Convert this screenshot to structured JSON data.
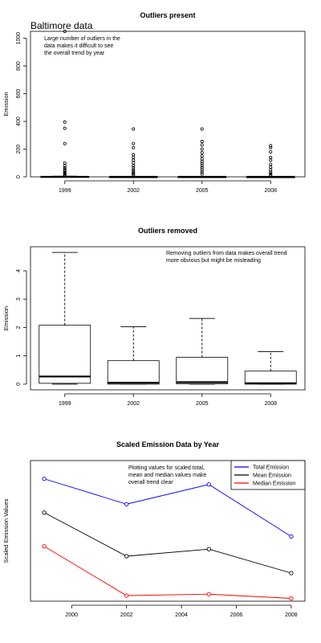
{
  "page": {
    "header": "Baltimore data"
  },
  "chart_data": [
    {
      "type": "boxplot",
      "title": "Outliers present",
      "xlabel": "",
      "ylabel": "Emission",
      "categories": [
        "1999",
        "2002",
        "2005",
        "2008"
      ],
      "ylim": [
        0,
        1050
      ],
      "yticks": [
        0,
        200,
        400,
        600,
        800,
        1000
      ],
      "boxes": [
        {
          "q1": 0,
          "median": 0.3,
          "q3": 2.1,
          "whisker_low": 0,
          "whisker_high": 4.7
        },
        {
          "q1": 0,
          "median": 0.05,
          "q3": 0.8,
          "whisker_low": 0,
          "whisker_high": 2.0
        },
        {
          "q1": 0,
          "median": 0.07,
          "q3": 0.95,
          "whisker_low": 0,
          "whisker_high": 2.3
        },
        {
          "q1": 0,
          "median": 0.03,
          "q3": 0.45,
          "whisker_low": 0,
          "whisker_high": 1.15
        }
      ],
      "outliers": [
        [
          1050,
          395,
          350,
          240,
          100,
          80,
          65,
          55,
          45,
          38,
          30,
          22,
          15,
          10
        ],
        [
          345,
          240,
          210,
          160,
          140,
          120,
          100,
          80,
          65,
          50,
          40,
          30,
          20,
          12
        ],
        [
          345,
          255,
          230,
          200,
          175,
          150,
          130,
          110,
          95,
          80,
          65,
          50,
          35,
          20
        ],
        [
          225,
          210,
          180,
          140,
          120,
          90,
          70,
          50,
          35,
          22,
          12
        ]
      ],
      "annotation": "Large number of outliers in the\ndata makes it difficult to see\nthe overall trend by year"
    },
    {
      "type": "boxplot",
      "title": "Outliers removed",
      "xlabel": "",
      "ylabel": "Emission",
      "categories": [
        "1999",
        "2002",
        "2005",
        "2008"
      ],
      "ylim": [
        -0.2,
        4.85
      ],
      "yticks": [
        0,
        1,
        2,
        3,
        4
      ],
      "boxes": [
        {
          "q1": 0.03,
          "median": 0.27,
          "q3": 2.08,
          "whisker_low": 0,
          "whisker_high": 4.65
        },
        {
          "q1": 0,
          "median": 0.05,
          "q3": 0.83,
          "whisker_low": 0,
          "whisker_high": 2.03
        },
        {
          "q1": 0.01,
          "median": 0.07,
          "q3": 0.95,
          "whisker_low": 0,
          "whisker_high": 2.32
        },
        {
          "q1": 0,
          "median": 0.03,
          "q3": 0.46,
          "whisker_low": 0,
          "whisker_high": 1.15
        }
      ],
      "annotation": "Removing outliers from data makes overall trend\nmore obvious but might be misleading"
    },
    {
      "type": "line",
      "title": "Scaled Emission Data by Year",
      "xlabel": "",
      "ylabel": "Scaled Emission Values",
      "xlim": [
        1998.5,
        2008.5
      ],
      "xticks": [
        2000,
        2002,
        2004,
        2006,
        2008
      ],
      "ylim": [
        0,
        1
      ],
      "x": [
        1999,
        2002,
        2005,
        2008
      ],
      "series": [
        {
          "name": "Total Emission",
          "color": "#0000ff",
          "values": [
            0.87,
            0.69,
            0.83,
            0.46
          ]
        },
        {
          "name": "Mean Emission",
          "color": "#000000",
          "values": [
            0.63,
            0.32,
            0.37,
            0.2
          ]
        },
        {
          "name": "Median Emission",
          "color": "#ff0000",
          "values": [
            0.39,
            0.04,
            0.05,
            0.02
          ]
        }
      ],
      "legend_position": "top-right",
      "annotation": "Plotting values for scaled total,\nmean and median values make\noverall trend clear"
    }
  ]
}
